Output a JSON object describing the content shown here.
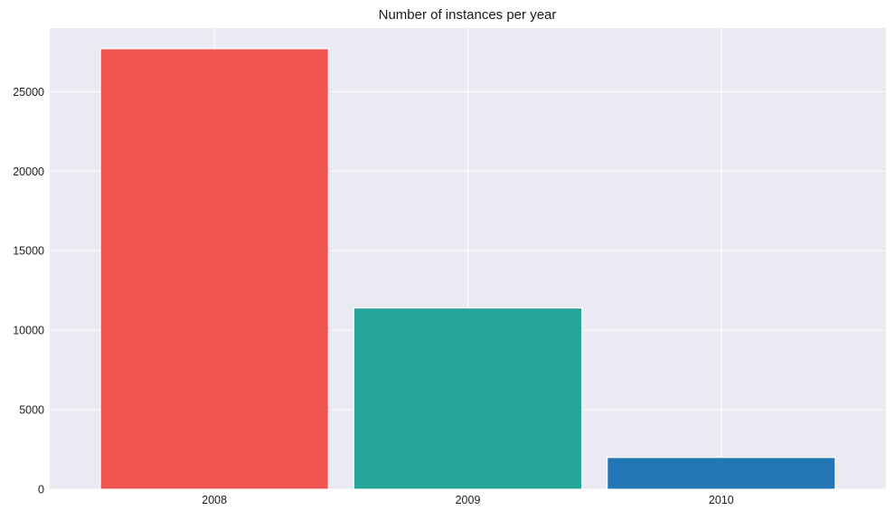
{
  "chart_data": {
    "type": "bar",
    "title": "Number of instances per year",
    "xlabel": "",
    "ylabel": "",
    "categories": [
      "2008",
      "2009",
      "2010"
    ],
    "values": [
      27700,
      11400,
      2000
    ],
    "bar_colors": [
      "#f05450",
      "#26a69a",
      "#2176b3"
    ],
    "ylim": [
      0,
      29000
    ],
    "yticks": [
      0,
      5000,
      10000,
      15000,
      20000,
      25000
    ],
    "ytick_labels": [
      "0",
      "5000",
      "10000",
      "15000",
      "20000",
      "25000"
    ],
    "grid": true,
    "legend": "none",
    "style": {
      "plot_background": "#eaeaf2",
      "grid_color": "#ffffff",
      "bar_edge_color": "#ffffff"
    }
  }
}
